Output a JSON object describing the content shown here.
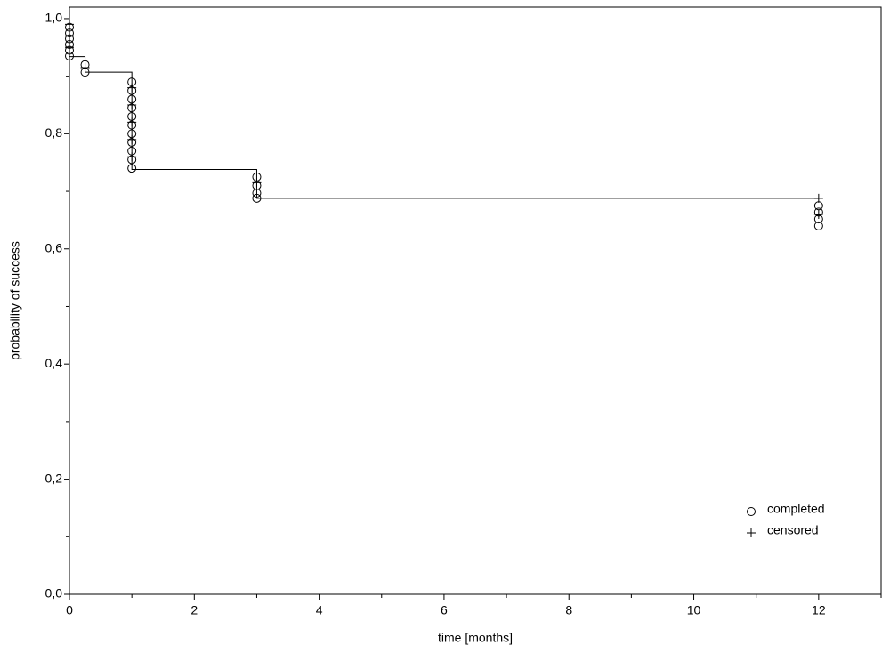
{
  "chart_data": {
    "type": "survival",
    "x_label": "time [months]",
    "y_label": "probability of success",
    "xlim": [
      0,
      13
    ],
    "ylim": [
      0,
      1.02
    ],
    "xticks": [
      0,
      2,
      4,
      6,
      8,
      10,
      12
    ],
    "xminorticks": [
      1,
      3,
      5,
      7,
      9,
      11,
      13
    ],
    "yticks": [
      {
        "value": 0,
        "label": "0,0"
      },
      {
        "value": 0.2,
        "label": "0,2"
      },
      {
        "value": 0.4,
        "label": "0,4"
      },
      {
        "value": 0.6,
        "label": "0,6"
      },
      {
        "value": 0.8,
        "label": "0,8"
      },
      {
        "value": 1,
        "label": "1,0"
      }
    ],
    "yminorticks": [
      0.1,
      0.3,
      0.5,
      0.7,
      0.9
    ],
    "curve": {
      "color": "#000000",
      "x": [
        0,
        0,
        0.25,
        0.25,
        1,
        1,
        3,
        3,
        12
      ],
      "values": [
        1,
        0.934,
        0.934,
        0.907,
        0.907,
        0.738,
        0.738,
        0.688,
        0.688
      ]
    },
    "series": [
      {
        "name": "completed",
        "marker": "circle",
        "color": "#000000",
        "x": [
          0,
          0,
          0,
          0,
          0,
          0,
          0.25,
          0.25,
          1,
          1,
          1,
          1,
          1,
          1,
          1,
          1,
          1,
          1,
          1,
          3,
          3,
          3,
          3,
          12,
          12,
          12,
          12
        ],
        "values": [
          0.985,
          0.975,
          0.965,
          0.955,
          0.945,
          0.935,
          0.92,
          0.907,
          0.89,
          0.875,
          0.86,
          0.845,
          0.83,
          0.815,
          0.8,
          0.785,
          0.77,
          0.755,
          0.74,
          0.725,
          0.71,
          0.697,
          0.688,
          0.675,
          0.664,
          0.652,
          0.64
        ]
      },
      {
        "name": "censored",
        "marker": "plus",
        "color": "#000000",
        "x": [
          0,
          0,
          0,
          0.25,
          1,
          1,
          1,
          1,
          1,
          3,
          12,
          12
        ],
        "values": [
          0.99,
          0.97,
          0.95,
          0.915,
          0.88,
          0.85,
          0.82,
          0.79,
          0.76,
          0.715,
          0.688,
          0.66
        ]
      }
    ],
    "legend": "lower right"
  }
}
